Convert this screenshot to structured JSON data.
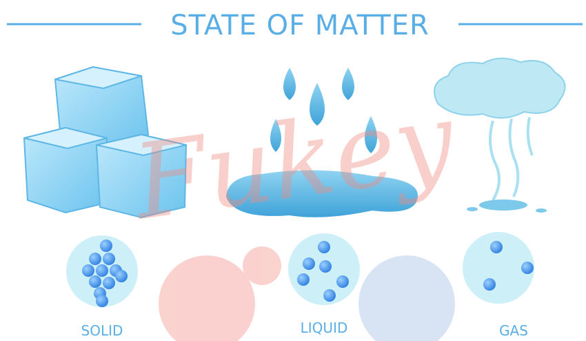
{
  "header": {
    "title": "STATE OF MATTER"
  },
  "states": [
    {
      "label": "SOLID"
    },
    {
      "label": "LIQUID"
    },
    {
      "label": "GAS"
    }
  ],
  "watermark": "Fukey"
}
